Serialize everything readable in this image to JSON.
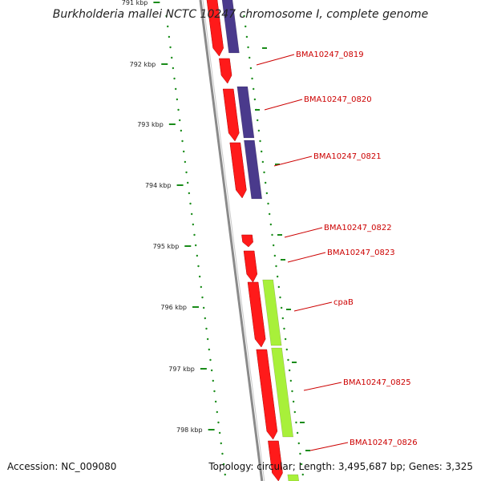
{
  "title": "Burkholderia mallei NCTC 10247 chromosome I, complete genome",
  "footer": {
    "accession_label": "Accession:",
    "accession_value": "NC_009080",
    "topology_label": "Topology:",
    "topology_value": "circular",
    "length_label": "Length:",
    "length_value": "3,495,687 bp",
    "genes_label": "Genes:",
    "genes_value": "3,325"
  },
  "colors": {
    "backbone": "#8a8a8a",
    "tick": "#1a8c1a",
    "label": "#cc0000",
    "cds": "#ff1a1a",
    "purple_feature": "#4a3a8c",
    "green_feature": "#a8f03a"
  },
  "ticks": [
    {
      "label": "791 kbp"
    },
    {
      "label": "792 kbp"
    },
    {
      "label": "793 kbp"
    },
    {
      "label": "794 kbp"
    },
    {
      "label": "795 kbp"
    },
    {
      "label": "796 kbp"
    },
    {
      "label": "797 kbp"
    },
    {
      "label": "798 kbp"
    }
  ],
  "gene_labels": [
    "BMA10247_0819",
    "BMA10247_0820",
    "BMA10247_0821",
    "BMA10247_0822",
    "BMA10247_0823",
    "cpaB",
    "BMA10247_0825",
    "BMA10247_0826"
  ]
}
